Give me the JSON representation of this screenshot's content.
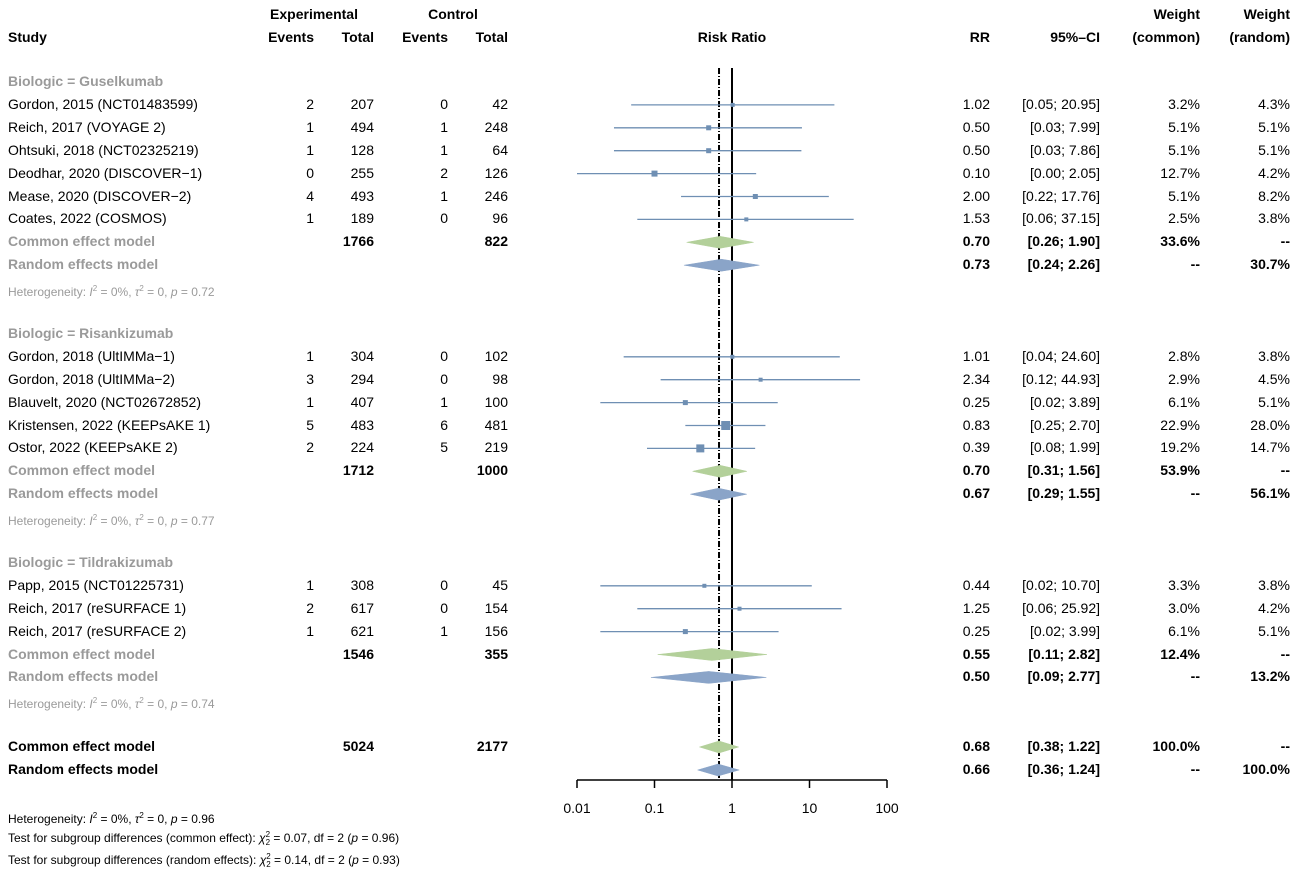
{
  "headers": {
    "study": "Study",
    "experimental": "Experimental",
    "control": "Control",
    "events": "Events",
    "total": "Total",
    "risk_ratio": "Risk Ratio",
    "rr": "RR",
    "ci": "95%–CI",
    "weight": "Weight",
    "weight_common": "(common)",
    "weight_random": "(random)"
  },
  "groups": [
    {
      "label": "Biologic = Guselkumab",
      "studies": [
        {
          "name": "Gordon, 2015 (NCT01483599)",
          "e_ev": "2",
          "e_tot": "207",
          "c_ev": "0",
          "c_tot": "42",
          "rr": "1.02",
          "ci": "[0.05; 20.95]",
          "w_common": "3.2%",
          "w_random": "4.3%",
          "rr_val": 1.02,
          "lo": 0.05,
          "hi": 20.95,
          "size": 4
        },
        {
          "name": "Reich, 2017 (VOYAGE 2)",
          "e_ev": "1",
          "e_tot": "494",
          "c_ev": "1",
          "c_tot": "248",
          "rr": "0.50",
          "ci": "[0.03; 7.99]",
          "w_common": "5.1%",
          "w_random": "5.1%",
          "rr_val": 0.5,
          "lo": 0.03,
          "hi": 7.99,
          "size": 5
        },
        {
          "name": "Ohtsuki, 2018 (NCT02325219)",
          "e_ev": "1",
          "e_tot": "128",
          "c_ev": "1",
          "c_tot": "64",
          "rr": "0.50",
          "ci": "[0.03; 7.86]",
          "w_common": "5.1%",
          "w_random": "5.1%",
          "rr_val": 0.5,
          "lo": 0.03,
          "hi": 7.86,
          "size": 5
        },
        {
          "name": "Deodhar, 2020 (DISCOVER−1)",
          "e_ev": "0",
          "e_tot": "255",
          "c_ev": "2",
          "c_tot": "126",
          "rr": "0.10",
          "ci": "[0.00; 2.05]",
          "w_common": "12.7%",
          "w_random": "4.2%",
          "rr_val": 0.1,
          "lo": 0.005,
          "hi": 2.05,
          "size": 6
        },
        {
          "name": "Mease, 2020 (DISCOVER−2)",
          "e_ev": "4",
          "e_tot": "493",
          "c_ev": "1",
          "c_tot": "246",
          "rr": "2.00",
          "ci": "[0.22; 17.76]",
          "w_common": "5.1%",
          "w_random": "8.2%",
          "rr_val": 2.0,
          "lo": 0.22,
          "hi": 17.76,
          "size": 5
        },
        {
          "name": "Coates, 2022 (COSMOS)",
          "e_ev": "1",
          "e_tot": "189",
          "c_ev": "0",
          "c_tot": "96",
          "rr": "1.53",
          "ci": "[0.06; 37.15]",
          "w_common": "2.5%",
          "w_random": "3.8%",
          "rr_val": 1.53,
          "lo": 0.06,
          "hi": 37.15,
          "size": 4
        }
      ],
      "common": {
        "label": "Common effect model",
        "e_tot": "1766",
        "c_tot": "822",
        "rr": "0.70",
        "ci": "[0.26; 1.90]",
        "w_common": "33.6%",
        "w_random": "--",
        "rr_val": 0.7,
        "lo": 0.26,
        "hi": 1.9
      },
      "random": {
        "label": "Random effects model",
        "rr": "0.73",
        "ci": "[0.24; 2.26]",
        "w_common": "--",
        "w_random": "30.7%",
        "rr_val": 0.73,
        "lo": 0.24,
        "hi": 2.26
      },
      "het": {
        "prefix": "Heterogeneity: ",
        "i2": "I",
        "i2_sup": "2",
        "i2_val": " = 0%, ",
        "tau": "τ",
        "tau_sup": "2",
        "tau_val": " = 0, ",
        "p": "p",
        "p_val": " = 0.72"
      }
    },
    {
      "label": "Biologic = Risankizumab",
      "studies": [
        {
          "name": "Gordon, 2018 (UltIMMa−1)",
          "e_ev": "1",
          "e_tot": "304",
          "c_ev": "0",
          "c_tot": "102",
          "rr": "1.01",
          "ci": "[0.04; 24.60]",
          "w_common": "2.8%",
          "w_random": "3.8%",
          "rr_val": 1.01,
          "lo": 0.04,
          "hi": 24.6,
          "size": 4
        },
        {
          "name": "Gordon, 2018 (UltIMMa−2)",
          "e_ev": "3",
          "e_tot": "294",
          "c_ev": "0",
          "c_tot": "98",
          "rr": "2.34",
          "ci": "[0.12; 44.93]",
          "w_common": "2.9%",
          "w_random": "4.5%",
          "rr_val": 2.34,
          "lo": 0.12,
          "hi": 44.93,
          "size": 4
        },
        {
          "name": "Blauvelt, 2020 (NCT02672852)",
          "e_ev": "1",
          "e_tot": "407",
          "c_ev": "1",
          "c_tot": "100",
          "rr": "0.25",
          "ci": "[0.02; 3.89]",
          "w_common": "6.1%",
          "w_random": "5.1%",
          "rr_val": 0.25,
          "lo": 0.02,
          "hi": 3.89,
          "size": 5
        },
        {
          "name": "Kristensen, 2022 (KEEPsAKE 1)",
          "e_ev": "5",
          "e_tot": "483",
          "c_ev": "6",
          "c_tot": "481",
          "rr": "0.83",
          "ci": "[0.25; 2.70]",
          "w_common": "22.9%",
          "w_random": "28.0%",
          "rr_val": 0.83,
          "lo": 0.25,
          "hi": 2.7,
          "size": 9
        },
        {
          "name": "Ostor, 2022 (KEEPsAKE 2)",
          "e_ev": "2",
          "e_tot": "224",
          "c_ev": "5",
          "c_tot": "219",
          "rr": "0.39",
          "ci": "[0.08; 1.99]",
          "w_common": "19.2%",
          "w_random": "14.7%",
          "rr_val": 0.39,
          "lo": 0.08,
          "hi": 1.99,
          "size": 8
        }
      ],
      "common": {
        "label": "Common effect model",
        "e_tot": "1712",
        "c_tot": "1000",
        "rr": "0.70",
        "ci": "[0.31; 1.56]",
        "w_common": "53.9%",
        "w_random": "--",
        "rr_val": 0.7,
        "lo": 0.31,
        "hi": 1.56
      },
      "random": {
        "label": "Random effects model",
        "rr": "0.67",
        "ci": "[0.29; 1.55]",
        "w_common": "--",
        "w_random": "56.1%",
        "rr_val": 0.67,
        "lo": 0.29,
        "hi": 1.55
      },
      "het": {
        "prefix": "Heterogeneity: ",
        "i2": "I",
        "i2_sup": "2",
        "i2_val": " = 0%, ",
        "tau": "τ",
        "tau_sup": "2",
        "tau_val": " = 0, ",
        "p": "p",
        "p_val": " = 0.77"
      }
    },
    {
      "label": "Biologic = Tildrakizumab",
      "studies": [
        {
          "name": "Papp, 2015 (NCT01225731)",
          "e_ev": "1",
          "e_tot": "308",
          "c_ev": "0",
          "c_tot": "45",
          "rr": "0.44",
          "ci": "[0.02; 10.70]",
          "w_common": "3.3%",
          "w_random": "3.8%",
          "rr_val": 0.44,
          "lo": 0.02,
          "hi": 10.7,
          "size": 4
        },
        {
          "name": "Reich, 2017 (reSURFACE 1)",
          "e_ev": "2",
          "e_tot": "617",
          "c_ev": "0",
          "c_tot": "154",
          "rr": "1.25",
          "ci": "[0.06; 25.92]",
          "w_common": "3.0%",
          "w_random": "4.2%",
          "rr_val": 1.25,
          "lo": 0.06,
          "hi": 25.92,
          "size": 4
        },
        {
          "name": "Reich, 2017 (reSURFACE 2)",
          "e_ev": "1",
          "e_tot": "621",
          "c_ev": "1",
          "c_tot": "156",
          "rr": "0.25",
          "ci": "[0.02; 3.99]",
          "w_common": "6.1%",
          "w_random": "5.1%",
          "rr_val": 0.25,
          "lo": 0.02,
          "hi": 3.99,
          "size": 5
        }
      ],
      "common": {
        "label": "Common effect model",
        "e_tot": "1546",
        "c_tot": "355",
        "rr": "0.55",
        "ci": "[0.11; 2.82]",
        "w_common": "12.4%",
        "w_random": "--",
        "rr_val": 0.55,
        "lo": 0.11,
        "hi": 2.82
      },
      "random": {
        "label": "Random effects model",
        "rr": "0.50",
        "ci": "[0.09; 2.77]",
        "w_common": "--",
        "w_random": "13.2%",
        "rr_val": 0.5,
        "lo": 0.09,
        "hi": 2.77
      },
      "het": {
        "prefix": "Heterogeneity: ",
        "i2": "I",
        "i2_sup": "2",
        "i2_val": " = 0%, ",
        "tau": "τ",
        "tau_sup": "2",
        "tau_val": " = 0, ",
        "p": "p",
        "p_val": " = 0.74"
      }
    }
  ],
  "overall": {
    "common": {
      "label": "Common effect model",
      "e_tot": "5024",
      "c_tot": "2177",
      "rr": "0.68",
      "ci": "[0.38; 1.22]",
      "w_common": "100.0%",
      "w_random": "--",
      "rr_val": 0.68,
      "lo": 0.38,
      "hi": 1.22
    },
    "random": {
      "label": "Random effects model",
      "rr": "0.66",
      "ci": "[0.36; 1.24]",
      "w_common": "--",
      "w_random": "100.0%",
      "rr_val": 0.66,
      "lo": 0.36,
      "hi": 1.24
    },
    "het": {
      "prefix": "Heterogeneity: ",
      "i2": "I",
      "i2_sup": "2",
      "i2_val": " = 0%, ",
      "tau": "τ",
      "tau_sup": "2",
      "tau_val": " = 0, ",
      "p": "p",
      "p_val": " = 0.96"
    },
    "sub_common": {
      "prefix": "Test for subgroup differences (common effect): ",
      "chi": "χ",
      "chi_sup": "2",
      "chi_sub": "2",
      "rest": " = 0.07, df = 2 (",
      "p": "p",
      "p_val": " = 0.96)"
    },
    "sub_random": {
      "prefix": "Test for subgroup differences (random effects): ",
      "chi": "χ",
      "chi_sup": "2",
      "chi_sub": "2",
      "rest": " = 0.14, df = 2 (",
      "p": "p",
      "p_val": " = 0.93)"
    }
  },
  "colors": {
    "square": "#6f8fb3",
    "ci_line": "#6f8fb3",
    "common_diamond": "#b3d09a",
    "random_diamond": "#8aa4c8",
    "label_gray": "#9a9a9a"
  },
  "chart_data": {
    "type": "forest",
    "title": "Risk Ratio",
    "xscale": "log",
    "xlim": [
      0.01,
      100
    ],
    "ticks": [
      "0.01",
      "0.1",
      "1",
      "10",
      "100"
    ],
    "tick_values": [
      0.01,
      0.1,
      1,
      10,
      100
    ],
    "reference_line": 1,
    "pooled_line": 0.68
  }
}
